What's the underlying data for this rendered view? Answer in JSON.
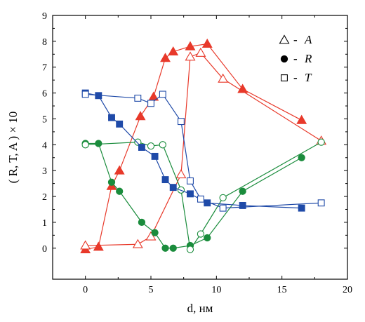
{
  "chart_data": {
    "type": "line",
    "xlabel": "d, нм",
    "ylabel": "( R, T, A ) × 10",
    "xlim": [
      -2.5,
      20
    ],
    "ylim": [
      -1.2,
      9
    ],
    "xticks": [
      0,
      5,
      10,
      15,
      20
    ],
    "yticks": [
      0,
      1,
      2,
      3,
      4,
      5,
      6,
      7,
      8,
      9
    ],
    "grid": false,
    "legend": {
      "placement": "top-right",
      "entries": [
        {
          "marker": "triangle-open",
          "label": "A"
        },
        {
          "marker": "circle-filled",
          "label": "R"
        },
        {
          "marker": "square-open",
          "label": "T"
        }
      ]
    },
    "series": [
      {
        "color": "#e8392a",
        "marker": "triangle",
        "filled": true,
        "x": [
          0,
          1,
          2,
          2.6,
          4.2,
          5.2,
          6.1,
          6.7,
          8,
          9.3,
          12,
          16.5
        ],
        "y": [
          -0.05,
          0.05,
          2.4,
          3.0,
          5.1,
          5.85,
          7.35,
          7.6,
          7.8,
          7.9,
          6.15,
          4.95
        ]
      },
      {
        "color": "#e8392a",
        "marker": "triangle",
        "filled": false,
        "x": [
          0,
          4,
          5,
          7.3,
          8,
          8.8,
          10.5,
          18
        ],
        "y": [
          0.1,
          0.15,
          0.45,
          2.85,
          7.4,
          7.55,
          6.55,
          4.15
        ]
      },
      {
        "color": "#1a8c3c",
        "marker": "circle",
        "filled": true,
        "x": [
          0,
          1,
          2,
          2.6,
          4.3,
          5.3,
          6.1,
          6.7,
          8,
          9.3,
          12,
          16.5
        ],
        "y": [
          4.05,
          4.05,
          2.55,
          2.2,
          1.0,
          0.6,
          0.0,
          0.0,
          0.1,
          0.4,
          2.2,
          3.5
        ]
      },
      {
        "color": "#1a8c3c",
        "marker": "circle",
        "filled": false,
        "x": [
          0,
          4,
          5,
          5.9,
          7.3,
          8,
          8.8,
          10.5,
          18
        ],
        "y": [
          4.0,
          4.1,
          3.95,
          4.0,
          2.25,
          -0.05,
          0.55,
          1.95,
          4.1
        ]
      },
      {
        "color": "#1f4aa8",
        "marker": "square",
        "filled": true,
        "x": [
          0,
          1,
          2,
          2.6,
          4.3,
          5.3,
          6.1,
          6.7,
          8,
          9.3,
          12,
          16.5
        ],
        "y": [
          6.0,
          5.9,
          5.05,
          4.8,
          3.9,
          3.55,
          2.65,
          2.35,
          2.1,
          1.75,
          1.65,
          1.55
        ]
      },
      {
        "color": "#1f4aa8",
        "marker": "square",
        "filled": false,
        "x": [
          0,
          4,
          5,
          5.9,
          7.3,
          8,
          8.8,
          10.5,
          18
        ],
        "y": [
          5.95,
          5.8,
          5.6,
          5.95,
          4.9,
          2.6,
          1.9,
          1.55,
          1.75
        ]
      }
    ]
  }
}
